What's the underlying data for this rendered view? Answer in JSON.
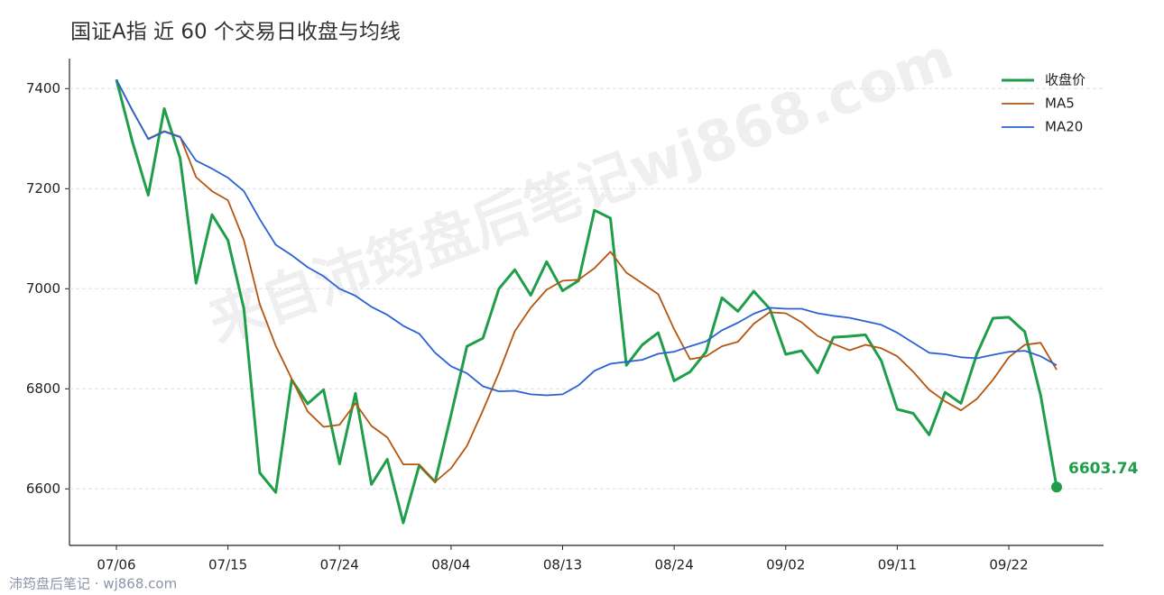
{
  "chart_data": {
    "type": "line",
    "title": "国证A指 近 60 个交易日收盘与均线",
    "watermark": "来自沛筠盘后笔记wj868.com",
    "footer": "沛筠盘后笔记 · wj868.com",
    "categories": [
      "07/06",
      null,
      null,
      null,
      null,
      null,
      null,
      "07/15",
      null,
      null,
      null,
      null,
      null,
      null,
      "07/24",
      null,
      null,
      null,
      null,
      null,
      null,
      "08/04",
      null,
      null,
      null,
      null,
      null,
      null,
      "08/13",
      null,
      null,
      null,
      null,
      null,
      null,
      "08/24",
      null,
      null,
      null,
      null,
      null,
      null,
      "09/02",
      null,
      null,
      null,
      null,
      null,
      null,
      "09/11",
      null,
      null,
      null,
      null,
      null,
      null,
      "09/22",
      null,
      null,
      null
    ],
    "series": [
      {
        "name": "收盘价",
        "color": "#1f9e4a",
        "values": [
          7418,
          7294,
          7187,
          7360,
          7261,
          7011,
          7148,
          7097,
          6960,
          6632,
          6593,
          6818,
          6770,
          6798,
          6650,
          6791,
          6609,
          6659,
          6532,
          6647,
          6614,
          6748,
          6885,
          6901,
          7000,
          7038,
          6987,
          7054,
          6996,
          7016,
          7157,
          7141,
          6847,
          6888,
          6912,
          6816,
          6834,
          6874,
          6982,
          6955,
          6995,
          6960,
          6869,
          6876,
          6832,
          6903,
          6905,
          6908,
          6856,
          6759,
          6751,
          6708,
          6793,
          6771,
          6870,
          6941,
          6943,
          6914,
          6787,
          6603.74
        ]
      },
      {
        "name": "MA5",
        "color": "#b5560f",
        "values": [
          7418,
          7356,
          7300,
          7315,
          7304,
          7223,
          7195,
          7177,
          7097,
          6969,
          6886,
          6820,
          6755,
          6724,
          6728,
          6771,
          6726,
          6703,
          6649,
          6649,
          6614,
          6641,
          6686,
          6757,
          6832,
          6915,
          6962,
          6998,
          7016,
          7018,
          7041,
          7074,
          7032,
          7011,
          6989,
          6919,
          6859,
          6865,
          6885,
          6894,
          6930,
          6953,
          6951,
          6933,
          6906,
          6890,
          6877,
          6888,
          6881,
          6865,
          6834,
          6798,
          6775,
          6757,
          6780,
          6818,
          6863,
          6888,
          6892,
          6838
        ]
      },
      {
        "name": "MA20",
        "color": "#2a62d6",
        "values": [
          7418,
          7357,
          7299,
          7314,
          7303,
          7256,
          7240,
          7222,
          7195,
          7139,
          7088,
          7067,
          7043,
          7025,
          7000,
          6986,
          6964,
          6948,
          6926,
          6910,
          6872,
          6845,
          6831,
          6805,
          6795,
          6796,
          6789,
          6787,
          6789,
          6807,
          6836,
          6850,
          6854,
          6858,
          6870,
          6874,
          6885,
          6895,
          6917,
          6932,
          6950,
          6962,
          6960,
          6960,
          6951,
          6946,
          6942,
          6935,
          6928,
          6912,
          6892,
          6872,
          6869,
          6863,
          6861,
          6868,
          6874,
          6876,
          6865,
          6847
        ]
      }
    ],
    "ylim": [
      6487,
      7460
    ],
    "yticks": [
      6600,
      6800,
      7000,
      7200,
      7400
    ],
    "grid": true,
    "legend": "upper right"
  }
}
